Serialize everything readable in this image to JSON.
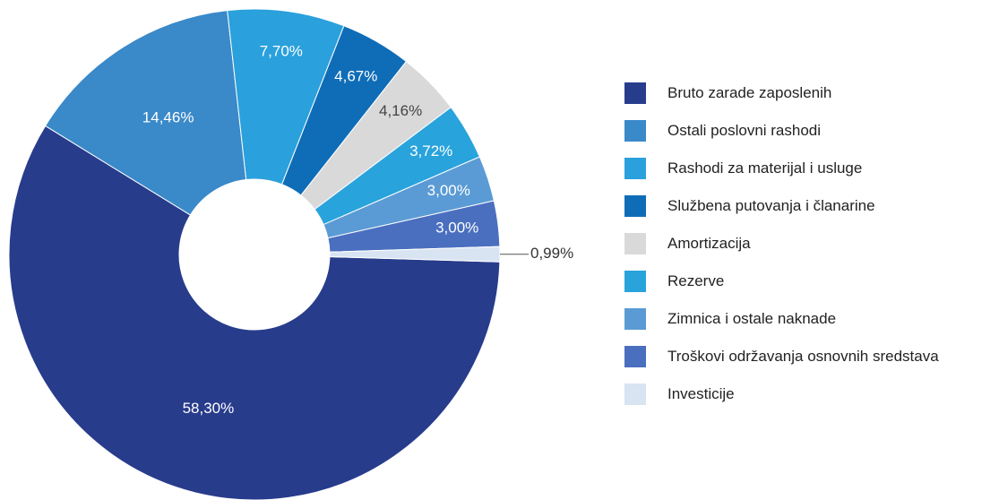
{
  "chart_data": {
    "type": "pie",
    "categories": [
      "Bruto zarade zaposlenih",
      "Ostali poslovni rashodi",
      "Rashodi za materijal i usluge",
      "Službena putovanja i članarine",
      "Amortizacija",
      "Rezerve",
      "Zimnica i ostale naknade",
      "Troškovi održavanja osnovnih sredstava",
      "Investicije"
    ],
    "values": [
      58.3,
      14.46,
      7.7,
      4.67,
      4.16,
      3.72,
      3.0,
      3.0,
      0.99
    ],
    "value_labels": [
      "58,30%",
      "14,46%",
      "7,70%",
      "4,67%",
      "4,16%",
      "3,72%",
      "3,00%",
      "3,00%",
      "0,99%"
    ],
    "colors": [
      "#283c8c",
      "#3a89c9",
      "#2aa0dc",
      "#0f6db8",
      "#d9d9d9",
      "#29a3dc",
      "#5b9bd5",
      "#4a6fbf",
      "#d9e4f2"
    ],
    "legend": "right"
  }
}
